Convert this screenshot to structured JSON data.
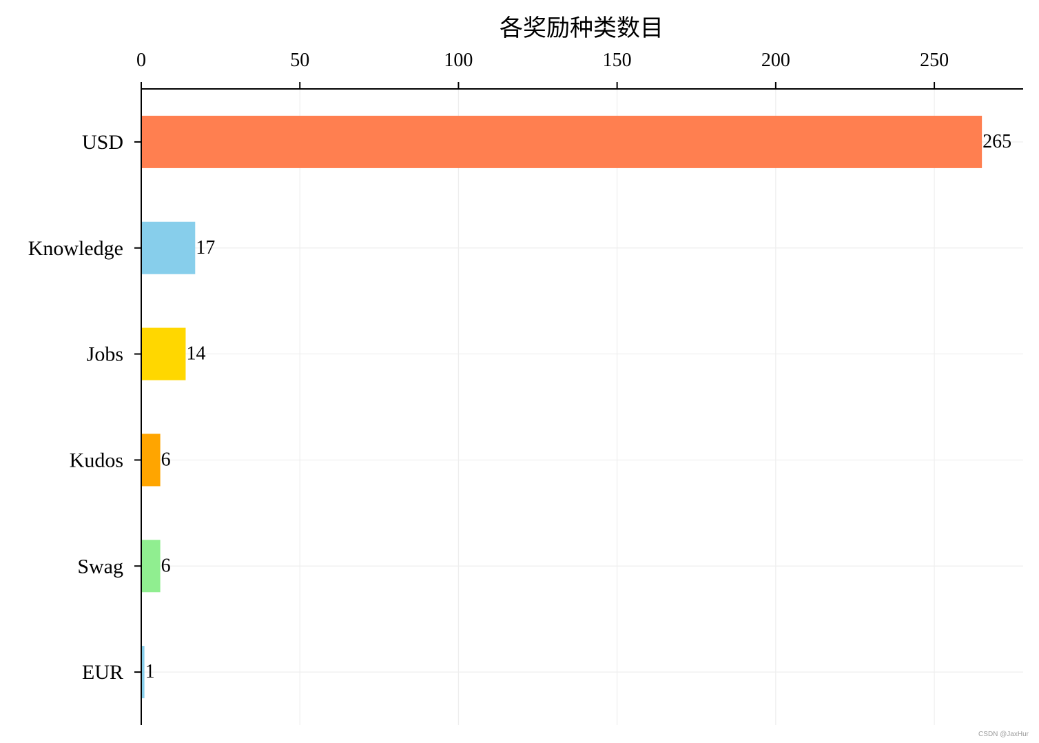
{
  "chart_data": {
    "type": "bar",
    "orientation": "horizontal",
    "title": "各奖励种类数目",
    "xlabel": "",
    "ylabel": "",
    "categories": [
      "USD",
      "Knowledge",
      "Jobs",
      "Kudos",
      "Swag",
      "EUR"
    ],
    "values": [
      265,
      17,
      14,
      6,
      6,
      1
    ],
    "colors": [
      "#ff7f50",
      "#87ceeb",
      "#ffd700",
      "#ffa500",
      "#90ee90",
      "#87ceeb"
    ],
    "xlim": [
      0,
      278
    ],
    "xticks": [
      0,
      50,
      100,
      150,
      200,
      250
    ],
    "x_axis_position": "top",
    "grid": true
  },
  "watermark": "CSDN @JaxHur"
}
